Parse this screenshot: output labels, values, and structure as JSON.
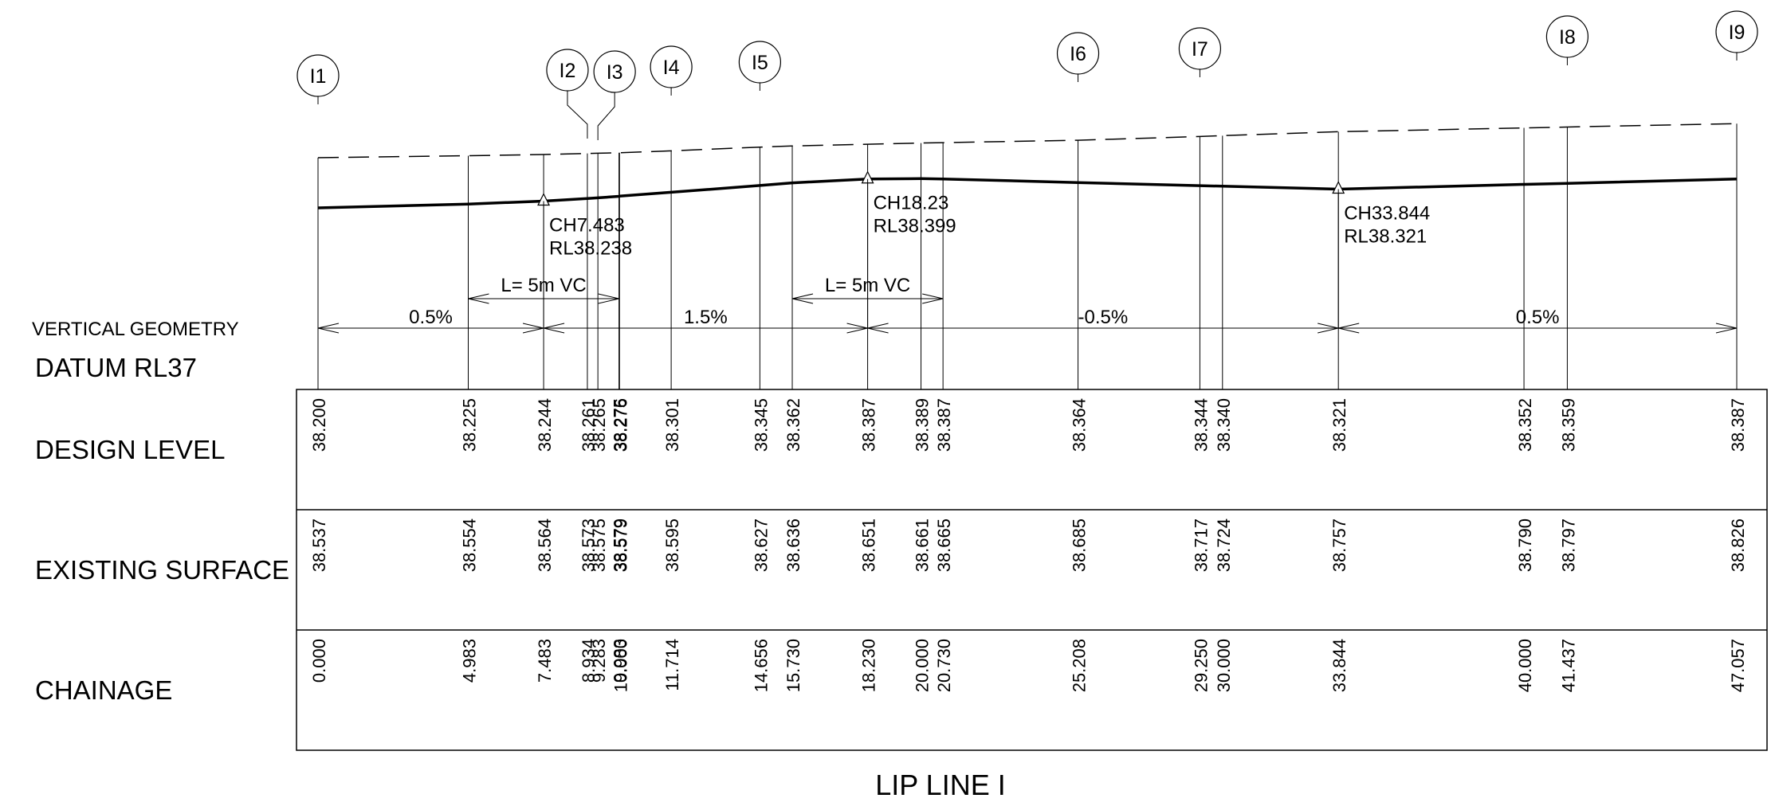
{
  "title": "LIP LINE I",
  "side_labels": {
    "vertical_geometry": "VERTICAL GEOMETRY",
    "datum": "DATUM RL37",
    "design_level": "DESIGN LEVEL",
    "existing_surface": "EXISTING SURFACE",
    "chainage": "CHAINAGE"
  },
  "colors": {
    "line": "#000000",
    "background": "#ffffff"
  },
  "stations": [
    {
      "chainage": "0.000",
      "design": "38.200",
      "existing": "38.537"
    },
    {
      "chainage": "4.983",
      "design": "38.225",
      "existing": "38.554"
    },
    {
      "chainage": "7.483",
      "design": "38.244",
      "existing": "38.564"
    },
    {
      "chainage": "8.934",
      "design": "38.261",
      "existing": "38.573"
    },
    {
      "chainage": "9.283",
      "design": "38.265",
      "existing": "38.575"
    },
    {
      "chainage": "9.983",
      "design": "38.275",
      "existing": "38.579"
    },
    {
      "chainage": "10.000",
      "design": "38.276",
      "existing": "38.579"
    },
    {
      "chainage": "11.714",
      "design": "38.301",
      "existing": "38.595"
    },
    {
      "chainage": "14.656",
      "design": "38.345",
      "existing": "38.627"
    },
    {
      "chainage": "15.730",
      "design": "38.362",
      "existing": "38.636"
    },
    {
      "chainage": "18.230",
      "design": "38.387",
      "existing": "38.651"
    },
    {
      "chainage": "20.000",
      "design": "38.389",
      "existing": "38.661"
    },
    {
      "chainage": "20.730",
      "design": "38.387",
      "existing": "38.665"
    },
    {
      "chainage": "25.208",
      "design": "38.364",
      "existing": "38.685"
    },
    {
      "chainage": "29.250",
      "design": "38.344",
      "existing": "38.717"
    },
    {
      "chainage": "30.000",
      "design": "38.340",
      "existing": "38.724"
    },
    {
      "chainage": "33.844",
      "design": "38.321",
      "existing": "38.757"
    },
    {
      "chainage": "40.000",
      "design": "38.352",
      "existing": "38.790"
    },
    {
      "chainage": "41.437",
      "design": "38.359",
      "existing": "38.797"
    },
    {
      "chainage": "47.057",
      "design": "38.387",
      "existing": "38.826"
    }
  ],
  "markers": [
    {
      "label": "I1",
      "chainage": 0.0
    },
    {
      "label": "I2",
      "chainage": 8.934
    },
    {
      "label": "I3",
      "chainage": 9.283
    },
    {
      "label": "I4",
      "chainage": 11.714
    },
    {
      "label": "I5",
      "chainage": 14.656
    },
    {
      "label": "I6",
      "chainage": 25.208
    },
    {
      "label": "I7",
      "chainage": 29.25
    },
    {
      "label": "I8",
      "chainage": 41.437
    },
    {
      "label": "I9",
      "chainage": 47.057
    }
  ],
  "grade_points": [
    {
      "chainage": 7.483,
      "ch_label": "CH7.483",
      "rl_label": "RL38.238"
    },
    {
      "chainage": 18.23,
      "ch_label": "CH18.23",
      "rl_label": "RL38.399"
    },
    {
      "chainage": 33.844,
      "ch_label": "CH33.844",
      "rl_label": "RL38.321"
    }
  ],
  "vertical_curves": [
    {
      "start": 4.983,
      "end": 9.983,
      "label": "L= 5m VC"
    },
    {
      "start": 15.73,
      "end": 20.73,
      "label": "L= 5m VC"
    }
  ],
  "grades": [
    {
      "start": 0.0,
      "end": 7.483,
      "label": "0.5%"
    },
    {
      "start": 7.483,
      "end": 18.23,
      "label": "1.5%"
    },
    {
      "start": 18.23,
      "end": 33.844,
      "label": "-0.5%"
    },
    {
      "start": 33.844,
      "end": 47.057,
      "label": "0.5%"
    }
  ]
}
